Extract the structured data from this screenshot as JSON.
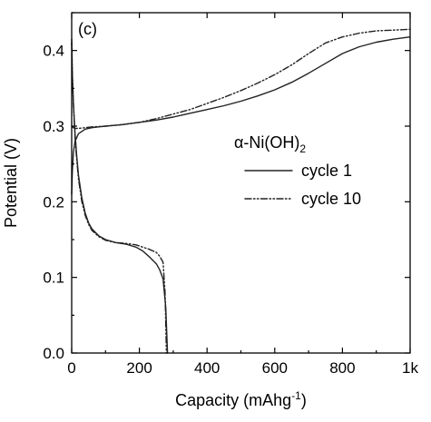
{
  "chart_data": {
    "type": "line",
    "panel_label": "(c)",
    "xlabel": {
      "main": "Capacity (mAhg",
      "sup": "-1",
      "tail": ")"
    },
    "ylabel": "Potential (V)",
    "xlim": [
      0,
      1000
    ],
    "ylim": [
      0.0,
      0.45
    ],
    "x_ticks": [
      0,
      200,
      400,
      600,
      800,
      1000
    ],
    "x_tick_labels": [
      "0",
      "200",
      "400",
      "600",
      "800",
      "1k"
    ],
    "y_ticks": [
      0.0,
      0.1,
      0.2,
      0.3,
      0.4
    ],
    "y_tick_labels": [
      "0.0",
      "0.1",
      "0.2",
      "0.3",
      "0.4"
    ],
    "grid": false,
    "legend": {
      "title": {
        "prefix": "α-Ni(OH)",
        "sub": "2"
      },
      "position": "right"
    },
    "series": [
      {
        "name": "cycle 1",
        "style": "solid",
        "segments": [
          {
            "x": [
              0,
              2,
              5,
              10,
              20,
              40,
              60,
              80,
              100,
              150,
              200,
              250,
              300,
              350,
              400,
              450,
              500,
              550,
              600,
              650,
              700,
              750,
              800,
              850,
              900,
              950,
              1000
            ],
            "y": [
              0.21,
              0.24,
              0.265,
              0.28,
              0.29,
              0.296,
              0.298,
              0.299,
              0.3,
              0.302,
              0.305,
              0.308,
              0.312,
              0.317,
              0.322,
              0.327,
              0.333,
              0.34,
              0.348,
              0.358,
              0.37,
              0.383,
              0.396,
              0.405,
              0.411,
              0.415,
              0.418
            ]
          },
          {
            "x": [
              0,
              2,
              5,
              10,
              15,
              20,
              30,
              40,
              50,
              60,
              80,
              100,
              130,
              160,
              190,
              210,
              230,
              250,
              260,
              270,
              278,
              283
            ],
            "y": [
              0.41,
              0.37,
              0.33,
              0.29,
              0.26,
              0.235,
              0.205,
              0.185,
              0.172,
              0.164,
              0.155,
              0.15,
              0.146,
              0.144,
              0.14,
              0.135,
              0.127,
              0.118,
              0.11,
              0.098,
              0.06,
              0.0
            ]
          }
        ]
      },
      {
        "name": "cycle 10",
        "style": "dash-dot-dot",
        "segments": [
          {
            "x": [
              0,
              5,
              10,
              20,
              40,
              60,
              100,
              150,
              200,
              250,
              300,
              350,
              400,
              450,
              500,
              550,
              600,
              650,
              700,
              750,
              800,
              850,
              900,
              950,
              1000
            ],
            "y": [
              0.3,
              0.298,
              0.297,
              0.297,
              0.298,
              0.299,
              0.3,
              0.302,
              0.305,
              0.31,
              0.316,
              0.322,
              0.33,
              0.338,
              0.347,
              0.357,
              0.368,
              0.381,
              0.396,
              0.41,
              0.418,
              0.423,
              0.426,
              0.427,
              0.428
            ]
          },
          {
            "x": [
              0,
              2,
              5,
              10,
              15,
              20,
              30,
              40,
              50,
              60,
              80,
              100,
              130,
              160,
              190,
              210,
              230,
              250,
              260,
              270,
              276,
              280
            ],
            "y": [
              0.415,
              0.37,
              0.33,
              0.285,
              0.255,
              0.23,
              0.2,
              0.182,
              0.17,
              0.162,
              0.154,
              0.149,
              0.146,
              0.145,
              0.143,
              0.14,
              0.137,
              0.133,
              0.128,
              0.12,
              0.08,
              0.0
            ]
          }
        ]
      }
    ]
  }
}
